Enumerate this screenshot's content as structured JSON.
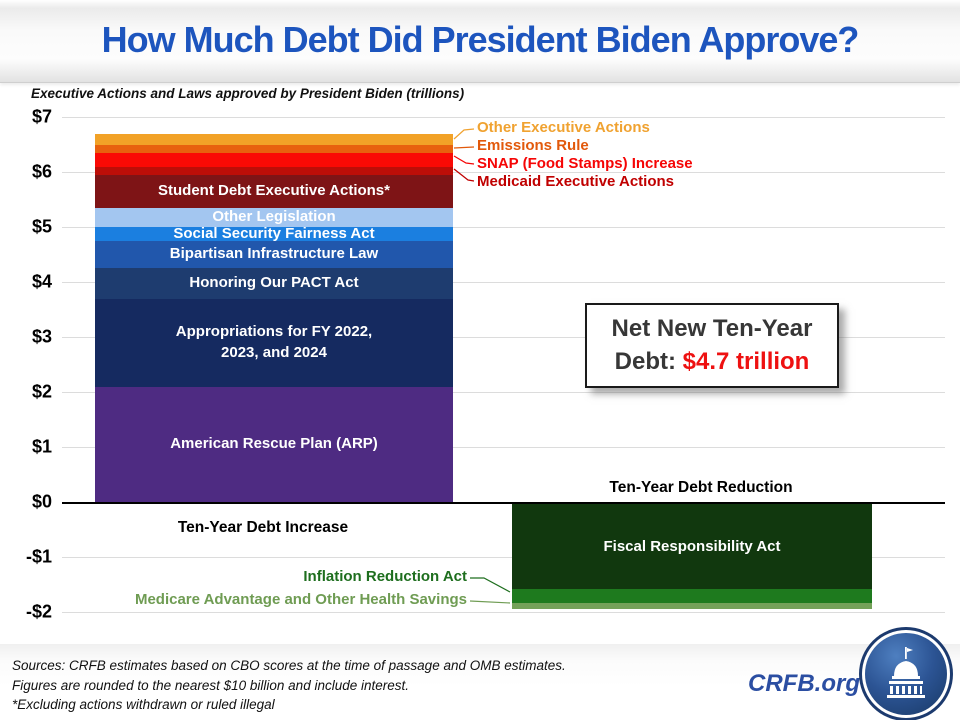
{
  "title": "How Much Debt Did President Biden Approve?",
  "subtitle": "Executive Actions and Laws approved by President Biden (trillions)",
  "net_box": {
    "line1": "Net New Ten-Year",
    "label": "Debt: ",
    "value": "$4.7 trillion"
  },
  "zone_labels": {
    "increase": "Ten-Year Debt Increase",
    "reduction": "Ten-Year Debt Reduction"
  },
  "footer": {
    "lines": [
      "Sources: CRFB estimates based on CBO scores at the time of passage and OMB estimates.",
      "Figures are rounded to the nearest $10 billion and include interest.",
      "*Excluding actions withdrawn or ruled illegal"
    ],
    "brand": "CRFB.org"
  },
  "colors": {
    "title": "#1D55BE",
    "brand": "#2B4EA2",
    "grid": "#DCDCDC",
    "zero_line": "#000000",
    "net_value": "#EE1111"
  },
  "chart_data": {
    "type": "bar",
    "title": "Executive Actions and Laws approved by President Biden (trillions)",
    "unit": "trillions of dollars (ten-year cost, estimated from chart)",
    "ylim": [
      -2.3,
      7.3
    ],
    "grid": true,
    "y_ticks": [
      {
        "label": "$7",
        "value": 7
      },
      {
        "label": "$6",
        "value": 6
      },
      {
        "label": "$5",
        "value": 5
      },
      {
        "label": "$4",
        "value": 4
      },
      {
        "label": "$3",
        "value": 3
      },
      {
        "label": "$2",
        "value": 2
      },
      {
        "label": "$1",
        "value": 1
      },
      {
        "label": "$0",
        "value": 0
      },
      {
        "label": "-$1",
        "value": -1
      },
      {
        "label": "-$2",
        "value": -2
      }
    ],
    "series": [
      {
        "name": "Ten-Year Debt Increase",
        "total": 6.7,
        "segments_top_to_bottom": [
          {
            "name": "Other Executive Actions",
            "value": 0.2,
            "color": "#F2A227",
            "label_placement": "callout",
            "label_color": "#F0A230"
          },
          {
            "name": "Emissions Rule",
            "value": 0.15,
            "color": "#E8610E",
            "label_placement": "callout",
            "label_color": "#E2590B"
          },
          {
            "name": "SNAP (Food Stamps) Increase",
            "value": 0.25,
            "color": "#FA0A05",
            "label_placement": "callout",
            "label_color": "#F50505"
          },
          {
            "name": "Medicaid Executive Actions",
            "value": 0.15,
            "color": "#BD0E08",
            "label_placement": "callout",
            "label_color": "#C00000"
          },
          {
            "name": "Student Debt Executive Actions*",
            "value": 0.6,
            "color": "#7E1416",
            "label_placement": "inside"
          },
          {
            "name": "Other Legislation",
            "value": 0.35,
            "color": "#A3C6F0",
            "label_placement": "inside"
          },
          {
            "name": "Social Security Fairness Act",
            "value": 0.25,
            "color": "#1B7FE0",
            "label_placement": "inside"
          },
          {
            "name": "Bipartisan Infrastructure Law",
            "value": 0.5,
            "color": "#2157AC",
            "label_placement": "inside"
          },
          {
            "name": "Honoring Our PACT Act",
            "value": 0.55,
            "color": "#1E3C6F",
            "label_placement": "inside"
          },
          {
            "name": "Appropriations for FY 2022, 2023, and 2024",
            "label_lines": [
              "Appropriations for FY 2022,",
              "2023, and 2024"
            ],
            "value": 1.6,
            "color": "#152A60",
            "label_placement": "inside"
          },
          {
            "name": "American Rescue Plan (ARP)",
            "value": 2.1,
            "color": "#4E2B82",
            "label_placement": "inside"
          }
        ]
      },
      {
        "name": "Ten-Year Debt Reduction",
        "total": 1.9,
        "segments_top_to_bottom": [
          {
            "name": "Fiscal Responsibility Act",
            "value": 1.55,
            "color": "#11380E",
            "label_placement": "inside"
          },
          {
            "name": "Inflation Reduction Act",
            "value": 0.25,
            "color": "#1E7A1E",
            "label_placement": "callout",
            "label_color": "#1E6E1E"
          },
          {
            "name": "Medicare Advantage and Other Health Savings",
            "value": 0.1,
            "color": "#74A159",
            "label_placement": "callout",
            "label_color": "#6F9C53"
          }
        ]
      }
    ],
    "annotation": "Net New Ten-Year Debt: $4.7 trillion"
  }
}
